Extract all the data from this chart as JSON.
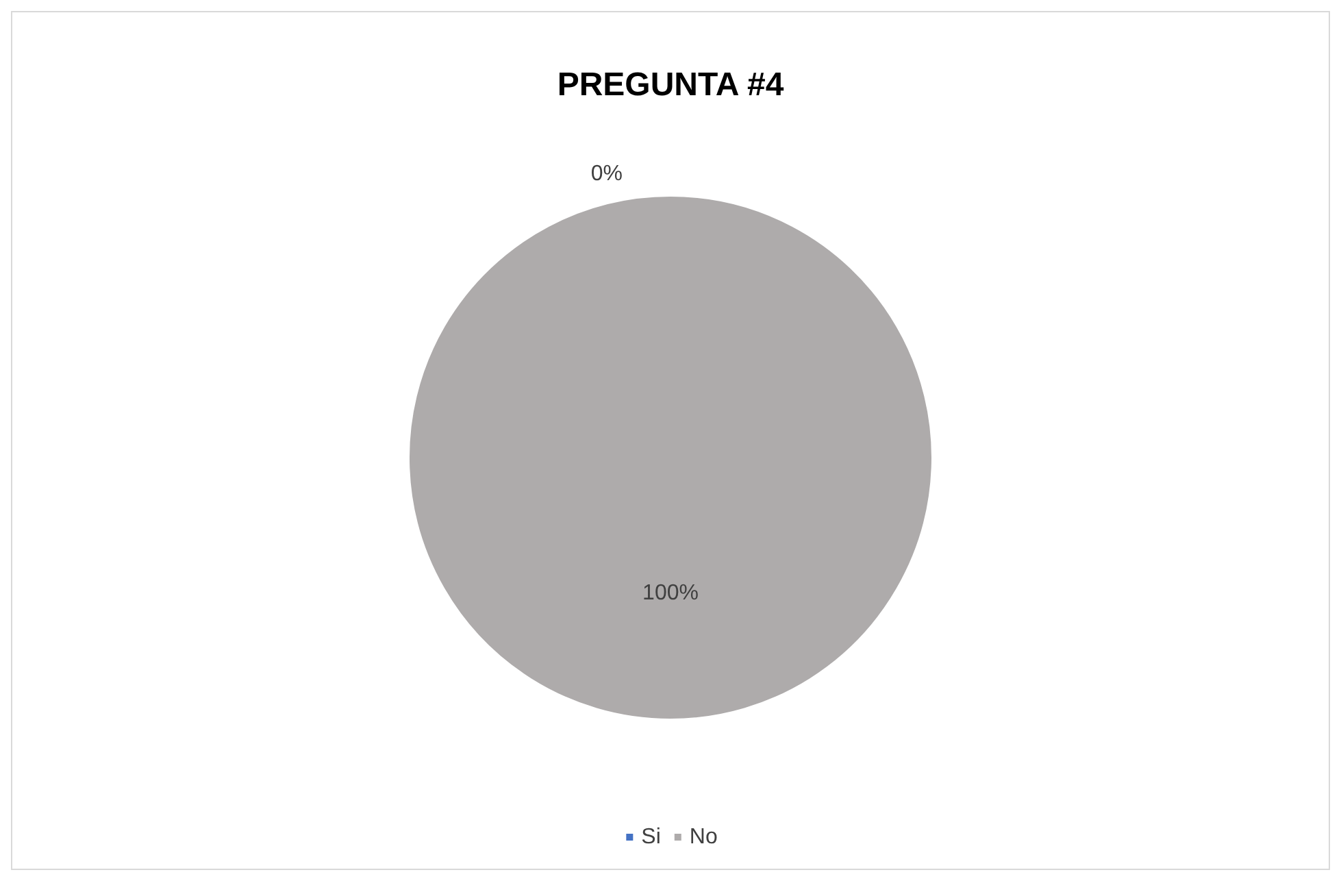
{
  "chart_data": {
    "type": "pie",
    "title": "PREGUNTA #4",
    "categories": [
      "Si",
      "No"
    ],
    "values": [
      0,
      100
    ],
    "colors": [
      "#4472c4",
      "#aeabab"
    ],
    "value_labels": [
      "0%",
      "100%"
    ],
    "legend": "bottom"
  }
}
